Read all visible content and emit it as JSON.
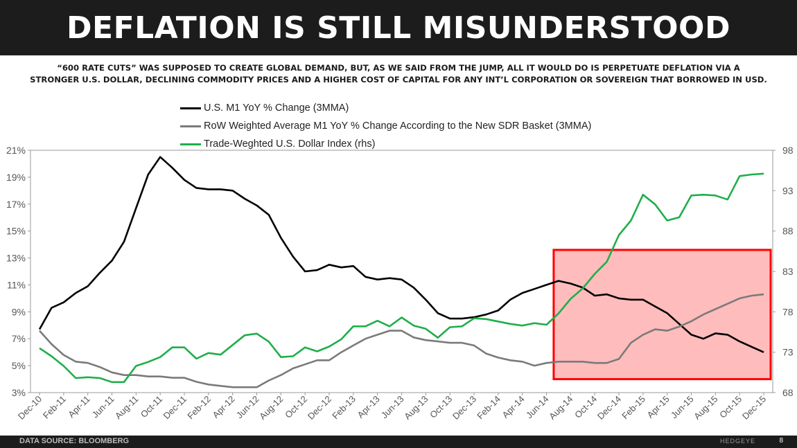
{
  "header": {
    "title": "DEFLATION IS STILL MISUNDERSTOOD",
    "subtitle_line1": "“600 RATE CUTS” WAS SUPPOSED TO CREATE GLOBAL DEMAND, BUT, AS WE SAID FROM THE JUMP, ALL IT WOULD DO IS PERPETUATE DEFLATION VIA A",
    "subtitle_line2": "STRONGER U.S. DOLLAR, DECLINING COMMODITY PRICES AND A HIGHER COST OF CAPITAL FOR ANY INT’L CORPORATION OR SOVEREIGN THAT BORROWED IN USD."
  },
  "footer": {
    "source": "DATA SOURCE: BLOOMBERG",
    "brand": "HEDGEYE",
    "page_number": "8"
  },
  "chart_data": {
    "type": "line",
    "title": "DEFLATION IS STILL MISUNDERSTOOD",
    "x": [
      "Dec-10",
      "Jan-11",
      "Feb-11",
      "Mar-11",
      "Apr-11",
      "May-11",
      "Jun-11",
      "Jul-11",
      "Aug-11",
      "Sep-11",
      "Oct-11",
      "Nov-11",
      "Dec-11",
      "Jan-12",
      "Feb-12",
      "Mar-12",
      "Apr-12",
      "May-12",
      "Jun-12",
      "Jul-12",
      "Aug-12",
      "Sep-12",
      "Oct-12",
      "Nov-12",
      "Dec-12",
      "Jan-13",
      "Feb-13",
      "Mar-13",
      "Apr-13",
      "May-13",
      "Jun-13",
      "Jul-13",
      "Aug-13",
      "Sep-13",
      "Oct-13",
      "Nov-13",
      "Dec-13",
      "Jan-14",
      "Feb-14",
      "Mar-14",
      "Apr-14",
      "May-14",
      "Jun-14",
      "Jul-14",
      "Aug-14",
      "Sep-14",
      "Oct-14",
      "Nov-14",
      "Dec-14",
      "Jan-15",
      "Feb-15",
      "Mar-15",
      "Apr-15",
      "May-15",
      "Jun-15",
      "Jul-15",
      "Aug-15",
      "Sep-15",
      "Oct-15",
      "Nov-15",
      "Dec-15"
    ],
    "tick_labels": [
      "Dec-10",
      "Feb-11",
      "Apr-11",
      "Jun-11",
      "Aug-11",
      "Oct-11",
      "Dec-11",
      "Feb-12",
      "Apr-12",
      "Jun-12",
      "Aug-12",
      "Oct-12",
      "Dec-12",
      "Feb-13",
      "Apr-13",
      "Jun-13",
      "Aug-13",
      "Oct-13",
      "Dec-13",
      "Feb-14",
      "Apr-14",
      "Jun-14",
      "Aug-14",
      "Oct-14",
      "Dec-14",
      "Feb-15",
      "Apr-15",
      "Jun-15",
      "Aug-15",
      "Oct-15",
      "Dec-15"
    ],
    "y_left": {
      "min": 3,
      "max": 21,
      "ticks": [
        "3%",
        "5%",
        "7%",
        "9%",
        "11%",
        "13%",
        "15%",
        "17%",
        "19%",
        "21%"
      ]
    },
    "y_right": {
      "min": 68,
      "max": 98,
      "ticks": [
        "68",
        "73",
        "78",
        "83",
        "88",
        "93",
        "98"
      ]
    },
    "series": [
      {
        "name": "U.S. M1 YoY % Change (3MMA)",
        "axis": "left",
        "color": "#000000",
        "values": [
          7.7,
          9.3,
          9.7,
          10.4,
          10.9,
          11.9,
          12.8,
          14.2,
          16.7,
          19.2,
          20.5,
          19.7,
          18.8,
          18.2,
          18.1,
          18.1,
          18.0,
          17.4,
          16.9,
          16.2,
          14.5,
          13.1,
          12.0,
          12.1,
          12.5,
          12.3,
          12.4,
          11.6,
          11.4,
          11.5,
          11.4,
          10.8,
          9.9,
          8.9,
          8.5,
          8.5,
          8.6,
          8.8,
          9.1,
          9.9,
          10.4,
          10.7,
          11.0,
          11.3,
          11.1,
          10.8,
          10.2,
          10.3,
          10.0,
          9.9,
          9.9,
          9.4,
          8.9,
          8.1,
          7.3,
          7.0,
          7.4,
          7.3,
          6.8,
          6.4,
          6.0
        ]
      },
      {
        "name": "RoW Weighted Average M1 YoY % Change According to the New SDR Basket (3MMA)",
        "axis": "left",
        "color": "#7a7a7a",
        "values": [
          7.6,
          6.6,
          5.8,
          5.3,
          5.2,
          4.9,
          4.5,
          4.3,
          4.3,
          4.2,
          4.2,
          4.1,
          4.1,
          3.8,
          3.6,
          3.5,
          3.4,
          3.4,
          3.4,
          3.9,
          4.3,
          4.8,
          5.1,
          5.4,
          5.4,
          6.0,
          6.5,
          7.0,
          7.3,
          7.6,
          7.6,
          7.1,
          6.9,
          6.8,
          6.7,
          6.7,
          6.5,
          5.9,
          5.6,
          5.4,
          5.3,
          5.0,
          5.2,
          5.3,
          5.3,
          5.3,
          5.2,
          5.2,
          5.5,
          6.7,
          7.3,
          7.7,
          7.6,
          7.9,
          8.3,
          8.8,
          9.2,
          9.6,
          10.0,
          10.2,
          10.3
        ]
      },
      {
        "name": "Trade-Weghted U.S. Dollar Index (rhs)",
        "axis": "right",
        "color": "#1fae4a",
        "values": [
          73.5,
          72.5,
          71.3,
          69.8,
          69.9,
          69.8,
          69.3,
          69.3,
          71.3,
          71.8,
          72.4,
          73.6,
          73.6,
          72.2,
          72.9,
          72.7,
          73.9,
          75.1,
          75.3,
          74.3,
          72.4,
          72.5,
          73.6,
          73.1,
          73.7,
          74.6,
          76.2,
          76.2,
          76.9,
          76.2,
          77.3,
          76.3,
          75.9,
          74.8,
          76.1,
          76.2,
          77.2,
          77.1,
          76.8,
          76.5,
          76.3,
          76.6,
          76.4,
          77.8,
          79.6,
          80.9,
          82.7,
          84.2,
          87.5,
          89.3,
          92.5,
          91.3,
          89.3,
          89.7,
          92.4,
          92.5,
          92.4,
          91.9,
          94.8,
          95.0,
          95.1
        ]
      }
    ],
    "highlight_box": {
      "x_from": "Jul-14",
      "x_to": "Jan-16",
      "y_from": 4.0,
      "y_to": 13.6,
      "color": "#ff0000",
      "fill": "#ffbcbc"
    }
  }
}
